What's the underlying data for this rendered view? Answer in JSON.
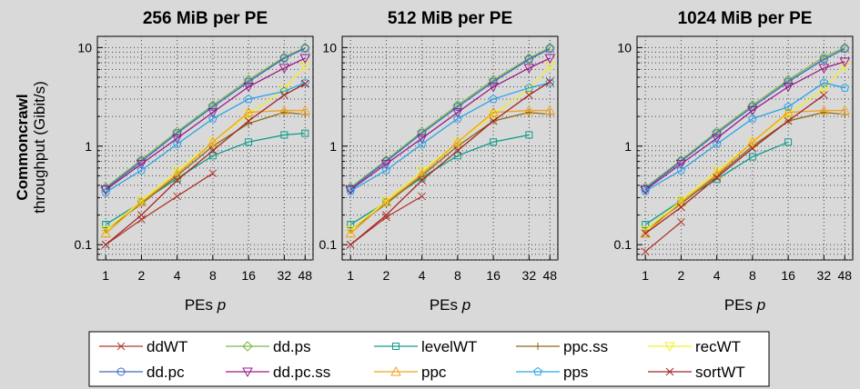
{
  "figure": {
    "row_label": "Commoncrawl",
    "ylabel": "throughput (Gibit/s)"
  },
  "chart_data": [
    {
      "type": "line",
      "title": "256 MiB per PE",
      "xlabel": "PEs p",
      "x_scale": "log2",
      "y_scale": "log10",
      "x_ticks": [
        1,
        2,
        4,
        8,
        16,
        32,
        48
      ],
      "y_ticks": [
        0.1,
        1,
        10
      ],
      "ylim": [
        0.07,
        13
      ],
      "grid": true,
      "series": [
        {
          "name": "ddWT",
          "x": [
            1,
            2,
            4,
            8
          ],
          "values": [
            0.1,
            0.18,
            0.31,
            0.53
          ]
        },
        {
          "name": "dd.ps",
          "x": [
            1,
            2,
            4,
            8,
            16,
            32,
            48
          ],
          "values": [
            0.38,
            0.73,
            1.4,
            2.6,
            4.7,
            8.0,
            10.0
          ]
        },
        {
          "name": "levelWT",
          "x": [
            1,
            2,
            4,
            8,
            16,
            32,
            48
          ],
          "values": [
            0.16,
            0.27,
            0.47,
            0.8,
            1.1,
            1.3,
            1.35
          ]
        },
        {
          "name": "ppc.ss",
          "x": [
            1,
            2,
            4,
            8,
            16,
            32,
            48
          ],
          "values": [
            0.14,
            0.26,
            0.5,
            1.0,
            1.7,
            2.2,
            2.1
          ]
        },
        {
          "name": "recWT",
          "x": [
            1,
            2,
            4,
            8,
            16,
            32,
            48
          ],
          "values": [
            0.14,
            0.28,
            0.56,
            1.1,
            2.1,
            3.8,
            6.5
          ]
        },
        {
          "name": "dd.pc",
          "x": [
            1,
            2,
            4,
            8,
            16,
            32,
            48
          ],
          "values": [
            0.37,
            0.7,
            1.35,
            2.5,
            4.5,
            7.8,
            9.8
          ]
        },
        {
          "name": "dd.pc.ss",
          "x": [
            1,
            2,
            4,
            8,
            16,
            32,
            48
          ],
          "values": [
            0.36,
            0.66,
            1.2,
            2.2,
            4.0,
            6.2,
            7.8
          ]
        },
        {
          "name": "ppc",
          "x": [
            1,
            2,
            4,
            8,
            16,
            32,
            48
          ],
          "values": [
            0.13,
            0.27,
            0.52,
            1.1,
            2.2,
            2.3,
            2.3
          ]
        },
        {
          "name": "pps",
          "x": [
            1,
            2,
            4,
            8,
            16,
            32,
            48
          ],
          "values": [
            0.34,
            0.57,
            1.05,
            1.9,
            3.0,
            3.6,
            4.4
          ]
        },
        {
          "name": "sortWT",
          "x": [
            1,
            2,
            4,
            8,
            16,
            32,
            48
          ],
          "values": [
            0.1,
            0.2,
            0.45,
            0.9,
            1.8,
            3.3,
            4.3
          ]
        }
      ]
    },
    {
      "type": "line",
      "title": "512 MiB per PE",
      "xlabel": "PEs p",
      "x_scale": "log2",
      "y_scale": "log10",
      "x_ticks": [
        1,
        2,
        4,
        8,
        16,
        32,
        48
      ],
      "y_ticks": [
        0.1,
        1,
        10
      ],
      "ylim": [
        0.07,
        13
      ],
      "grid": true,
      "series": [
        {
          "name": "ddWT",
          "x": [
            1,
            2,
            4
          ],
          "values": [
            0.1,
            0.19,
            0.31
          ]
        },
        {
          "name": "dd.ps",
          "x": [
            1,
            2,
            4,
            8,
            16,
            32,
            48
          ],
          "values": [
            0.38,
            0.72,
            1.4,
            2.6,
            4.7,
            7.8,
            10.0
          ]
        },
        {
          "name": "levelWT",
          "x": [
            1,
            2,
            4,
            8,
            16,
            32
          ],
          "values": [
            0.16,
            0.27,
            0.48,
            0.8,
            1.1,
            1.3
          ]
        },
        {
          "name": "ppc.ss",
          "x": [
            1,
            2,
            4,
            8,
            16,
            32,
            48
          ],
          "values": [
            0.14,
            0.26,
            0.5,
            1.0,
            1.8,
            2.2,
            2.1
          ]
        },
        {
          "name": "recWT",
          "x": [
            1,
            2,
            4,
            8,
            16,
            32,
            48
          ],
          "values": [
            0.14,
            0.28,
            0.56,
            1.1,
            2.1,
            3.8,
            6.5
          ]
        },
        {
          "name": "dd.pc",
          "x": [
            1,
            2,
            4,
            8,
            16,
            32,
            48
          ],
          "values": [
            0.37,
            0.7,
            1.35,
            2.5,
            4.5,
            7.6,
            9.7
          ]
        },
        {
          "name": "dd.pc.ss",
          "x": [
            1,
            2,
            4,
            8,
            16,
            32,
            48
          ],
          "values": [
            0.36,
            0.66,
            1.2,
            2.2,
            4.0,
            6.2,
            7.8
          ]
        },
        {
          "name": "ppc",
          "x": [
            1,
            2,
            4,
            8,
            16,
            32,
            48
          ],
          "values": [
            0.13,
            0.27,
            0.52,
            1.1,
            2.2,
            2.3,
            2.3
          ]
        },
        {
          "name": "pps",
          "x": [
            1,
            2,
            4,
            8,
            16,
            32,
            48
          ],
          "values": [
            0.35,
            0.57,
            1.05,
            1.9,
            3.0,
            3.9,
            4.4
          ]
        },
        {
          "name": "sortWT",
          "x": [
            1,
            2,
            4,
            8,
            16,
            32,
            48
          ],
          "values": [
            0.1,
            0.2,
            0.45,
            0.9,
            1.8,
            3.3,
            4.5
          ]
        }
      ]
    },
    {
      "type": "line",
      "title": "1024 MiB per PE",
      "xlabel": "PEs p",
      "x_scale": "log2",
      "y_scale": "log10",
      "x_ticks": [
        1,
        2,
        4,
        8,
        16,
        32,
        48
      ],
      "y_ticks": [
        0.1,
        1,
        10
      ],
      "ylim": [
        0.07,
        13
      ],
      "grid": true,
      "series": [
        {
          "name": "ddWT",
          "x": [
            1,
            2
          ],
          "values": [
            0.085,
            0.17
          ]
        },
        {
          "name": "dd.ps",
          "x": [
            1,
            2,
            4,
            8,
            16,
            32,
            48
          ],
          "values": [
            0.38,
            0.72,
            1.4,
            2.6,
            4.7,
            8.0,
            10.0
          ]
        },
        {
          "name": "levelWT",
          "x": [
            1,
            2,
            4,
            8,
            16
          ],
          "values": [
            0.16,
            0.28,
            0.46,
            0.78,
            1.1
          ]
        },
        {
          "name": "ppc.ss",
          "x": [
            1,
            2,
            4,
            8,
            16,
            32,
            48
          ],
          "values": [
            0.14,
            0.26,
            0.5,
            1.0,
            1.8,
            2.2,
            2.1
          ]
        },
        {
          "name": "recWT",
          "x": [
            1,
            2,
            4,
            8,
            16,
            32,
            48
          ],
          "values": [
            0.14,
            0.28,
            0.56,
            1.1,
            2.1,
            3.8,
            6.5
          ]
        },
        {
          "name": "dd.pc",
          "x": [
            1,
            2,
            4,
            8,
            16,
            32,
            48
          ],
          "values": [
            0.37,
            0.7,
            1.35,
            2.5,
            4.5,
            7.6,
            9.7
          ]
        },
        {
          "name": "dd.pc.ss",
          "x": [
            1,
            2,
            4,
            8,
            16,
            32,
            48
          ],
          "values": [
            0.36,
            0.66,
            1.2,
            2.3,
            4.0,
            6.2,
            7.2
          ]
        },
        {
          "name": "ppc",
          "x": [
            1,
            2,
            4,
            8,
            16,
            32,
            48
          ],
          "values": [
            0.13,
            0.27,
            0.52,
            1.1,
            2.2,
            2.3,
            2.3
          ]
        },
        {
          "name": "pps",
          "x": [
            1,
            2,
            4,
            8,
            16,
            32,
            48
          ],
          "values": [
            0.35,
            0.57,
            1.05,
            1.9,
            2.5,
            4.4,
            3.9
          ]
        },
        {
          "name": "sortWT",
          "x": [
            1,
            2,
            4,
            8,
            16,
            32
          ],
          "values": [
            0.13,
            0.24,
            0.48,
            0.95,
            1.8,
            3.3
          ]
        }
      ]
    }
  ],
  "legend": {
    "placement": "bottom",
    "columns": 5,
    "entries": [
      {
        "name": "ddWT",
        "color": "#b03a2e",
        "marker": "x"
      },
      {
        "name": "dd.ps",
        "color": "#7ab648",
        "marker": "diamond"
      },
      {
        "name": "levelWT",
        "color": "#129c8c",
        "marker": "square"
      },
      {
        "name": "ppc.ss",
        "color": "#8b6914",
        "marker": "plus"
      },
      {
        "name": "recWT",
        "color": "#f2ef2a",
        "marker": "tri-down"
      },
      {
        "name": "dd.pc",
        "color": "#3a6bbf",
        "marker": "circle"
      },
      {
        "name": "dd.pc.ss",
        "color": "#9b1b8a",
        "marker": "tri-down"
      },
      {
        "name": "ppc",
        "color": "#f0a21e",
        "marker": "tri-up"
      },
      {
        "name": "pps",
        "color": "#2aa3e8",
        "marker": "pentagon"
      },
      {
        "name": "sortWT",
        "color": "#a52525",
        "marker": "x"
      }
    ]
  }
}
